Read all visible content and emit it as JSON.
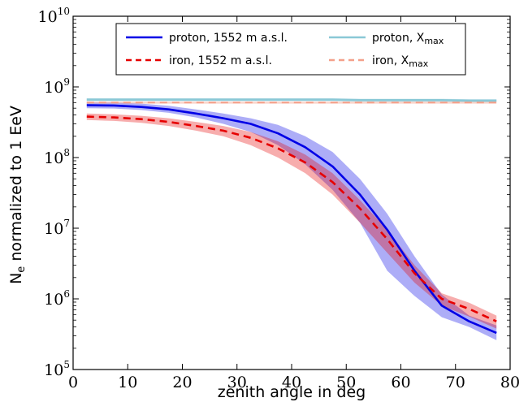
{
  "chart_data": {
    "type": "line",
    "xlabel": "zenith angle in deg",
    "ylabel": "N",
    "ylabel_sub": "e",
    "ylabel_rest": " normalized to 1 EeV",
    "xlim": [
      0,
      80
    ],
    "ylim_log10": [
      5,
      10
    ],
    "log_y": true,
    "grid": false,
    "legend_position": "top-center",
    "x_ticks": [
      0,
      10,
      20,
      30,
      40,
      50,
      60,
      70,
      80
    ],
    "x_tick_labels": [
      "0",
      "10",
      "20",
      "30",
      "40",
      "50",
      "60",
      "70",
      "80"
    ],
    "y_ticks_log10": [
      5,
      6,
      7,
      8,
      9,
      10
    ],
    "y_tick_base": "10",
    "y_tick_exps": [
      "5",
      "6",
      "7",
      "8",
      "9",
      "10"
    ],
    "x": [
      2.5,
      7.5,
      12.5,
      17.5,
      22.5,
      27.5,
      32.5,
      37.5,
      42.5,
      47.5,
      52.5,
      57.5,
      62.5,
      67.5,
      72.5,
      77.5
    ],
    "series": [
      {
        "name": "proton, 1552 m a.s.l.",
        "color": "#0000e6",
        "dash": "solid",
        "values": [
          550000000,
          545000000,
          520000000,
          480000000,
          420000000,
          360000000,
          300000000,
          220000000,
          140000000,
          75000000,
          30000000,
          9500000,
          2500000,
          800000,
          480000,
          330000
        ],
        "band_low": [
          500000000,
          495000000,
          470000000,
          430000000,
          370000000,
          300000000,
          230000000,
          150000000,
          80000000,
          35000000,
          12000000,
          2500000,
          1100000,
          550000,
          400000,
          260000
        ],
        "band_high": [
          600000000,
          600000000,
          580000000,
          540000000,
          480000000,
          420000000,
          360000000,
          290000000,
          200000000,
          120000000,
          50000000,
          16000000,
          4000000,
          1150000,
          580000,
          420000
        ]
      },
      {
        "name": "iron, 1552 m a.s.l.",
        "color": "#e60000",
        "dash": "dashed",
        "values": [
          380000000,
          370000000,
          350000000,
          320000000,
          280000000,
          240000000,
          190000000,
          135000000,
          85000000,
          45000000,
          19000000,
          7000000,
          2300000,
          1000000,
          720000,
          480000
        ],
        "band_low": [
          340000000,
          330000000,
          310000000,
          280000000,
          240000000,
          200000000,
          150000000,
          100000000,
          60000000,
          30000000,
          12000000,
          4500000,
          1700000,
          800000,
          560000,
          380000
        ],
        "band_high": [
          420000000,
          410000000,
          390000000,
          360000000,
          320000000,
          280000000,
          230000000,
          170000000,
          110000000,
          60000000,
          25000000,
          9500000,
          3000000,
          1200000,
          880000,
          580000
        ]
      },
      {
        "name": "proton, X",
        "name_sub": "max",
        "color": "#8ac8d6",
        "dash": "solid",
        "values": [
          660000000,
          660000000,
          660000000,
          660000000,
          660000000,
          660000000,
          660000000,
          660000000,
          660000000,
          660000000,
          650000000,
          650000000,
          650000000,
          650000000,
          640000000,
          640000000
        ],
        "band_low": [
          630000000,
          630000000,
          630000000,
          630000000,
          630000000,
          630000000,
          630000000,
          630000000,
          630000000,
          630000000,
          620000000,
          620000000,
          620000000,
          620000000,
          610000000,
          610000000
        ],
        "band_high": [
          690000000,
          690000000,
          690000000,
          690000000,
          690000000,
          690000000,
          690000000,
          690000000,
          690000000,
          690000000,
          680000000,
          680000000,
          680000000,
          680000000,
          670000000,
          670000000
        ]
      },
      {
        "name": "iron, X",
        "name_sub": "max",
        "color": "#f4a08a",
        "dash": "dashed",
        "values": [
          600000000,
          600000000,
          600000000,
          600000000,
          600000000,
          600000000,
          600000000,
          600000000,
          600000000,
          600000000,
          600000000,
          600000000,
          600000000,
          600000000,
          600000000,
          600000000
        ],
        "band_low": [
          580000000,
          580000000,
          580000000,
          580000000,
          580000000,
          580000000,
          580000000,
          580000000,
          580000000,
          580000000,
          580000000,
          580000000,
          580000000,
          580000000,
          580000000,
          580000000
        ],
        "band_high": [
          620000000,
          620000000,
          620000000,
          620000000,
          620000000,
          620000000,
          620000000,
          620000000,
          620000000,
          620000000,
          620000000,
          620000000,
          620000000,
          620000000,
          620000000,
          620000000
        ]
      }
    ]
  }
}
